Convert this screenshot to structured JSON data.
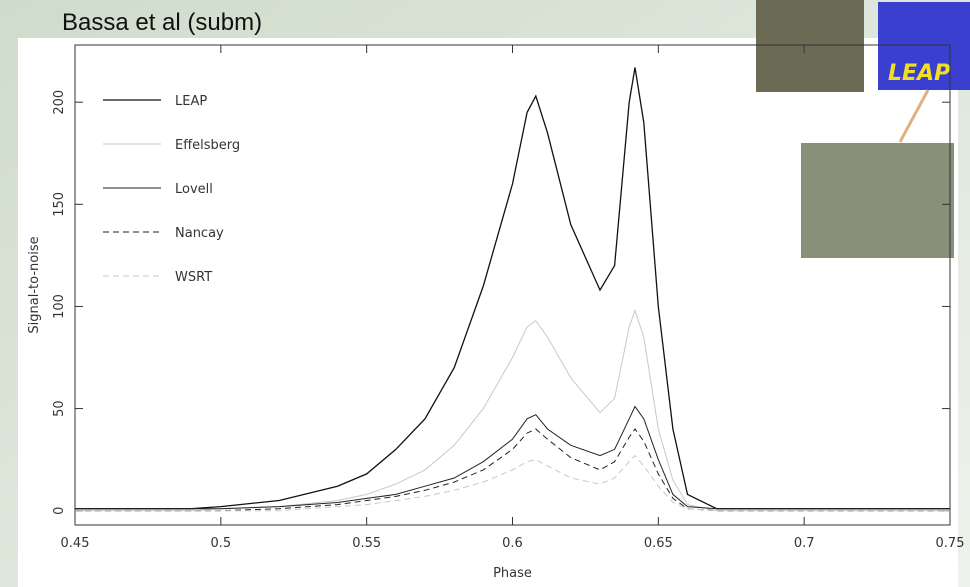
{
  "slide": {
    "title": "Bassa et al (subm)",
    "logo_text": "LEAP"
  },
  "chart_data": {
    "type": "line",
    "x_label": "Phase",
    "y_label": "Signal-to-noise",
    "x": [
      0.45,
      0.47,
      0.49,
      0.5,
      0.52,
      0.54,
      0.55,
      0.56,
      0.57,
      0.58,
      0.59,
      0.6,
      0.605,
      0.608,
      0.612,
      0.62,
      0.63,
      0.635,
      0.64,
      0.642,
      0.645,
      0.65,
      0.655,
      0.66,
      0.67,
      0.7,
      0.75
    ],
    "series": [
      {
        "name": "LEAP",
        "color": "#111111",
        "dash": "none",
        "width": 1.3,
        "values": [
          1,
          1,
          1,
          2,
          5,
          12,
          18,
          30,
          45,
          70,
          110,
          160,
          195,
          203,
          185,
          140,
          108,
          120,
          200,
          217,
          190,
          100,
          40,
          8,
          1,
          1,
          1
        ]
      },
      {
        "name": "Effelsberg",
        "color": "#c8c8c8",
        "dash": "none",
        "width": 1,
        "values": [
          0,
          0,
          0,
          1,
          2,
          5,
          8,
          13,
          20,
          32,
          50,
          75,
          90,
          93,
          85,
          65,
          48,
          55,
          90,
          98,
          85,
          40,
          15,
          3,
          0,
          0,
          0
        ]
      },
      {
        "name": "Lovell",
        "color": "#222222",
        "dash": "none",
        "width": 1,
        "values": [
          1,
          1,
          1,
          1,
          2,
          4,
          6,
          8,
          12,
          16,
          24,
          35,
          45,
          47,
          40,
          32,
          27,
          30,
          45,
          51,
          45,
          25,
          8,
          2,
          1,
          1,
          1
        ]
      },
      {
        "name": "Nancay",
        "color": "#222222",
        "dash": "6 4",
        "width": 1,
        "values": [
          0,
          0,
          0,
          0,
          1,
          3,
          5,
          7,
          10,
          14,
          20,
          30,
          38,
          40,
          35,
          26,
          20,
          24,
          36,
          40,
          34,
          18,
          6,
          1,
          0,
          0,
          0
        ]
      },
      {
        "name": "WSRT",
        "color": "#c8c8c8",
        "dash": "6 4",
        "width": 1,
        "values": [
          0,
          0,
          0,
          0,
          0,
          2,
          3,
          5,
          7,
          10,
          14,
          20,
          24,
          25,
          22,
          16,
          13,
          16,
          24,
          27,
          22,
          12,
          4,
          1,
          0,
          0,
          0
        ]
      }
    ],
    "xlim": [
      0.45,
      0.75
    ],
    "ylim": [
      -7,
      228
    ],
    "xticks": [
      0.45,
      0.5,
      0.55,
      0.6,
      0.65,
      0.7,
      0.75
    ],
    "yticks": [
      0,
      50,
      100,
      150,
      200
    ],
    "legend": "upper left"
  }
}
